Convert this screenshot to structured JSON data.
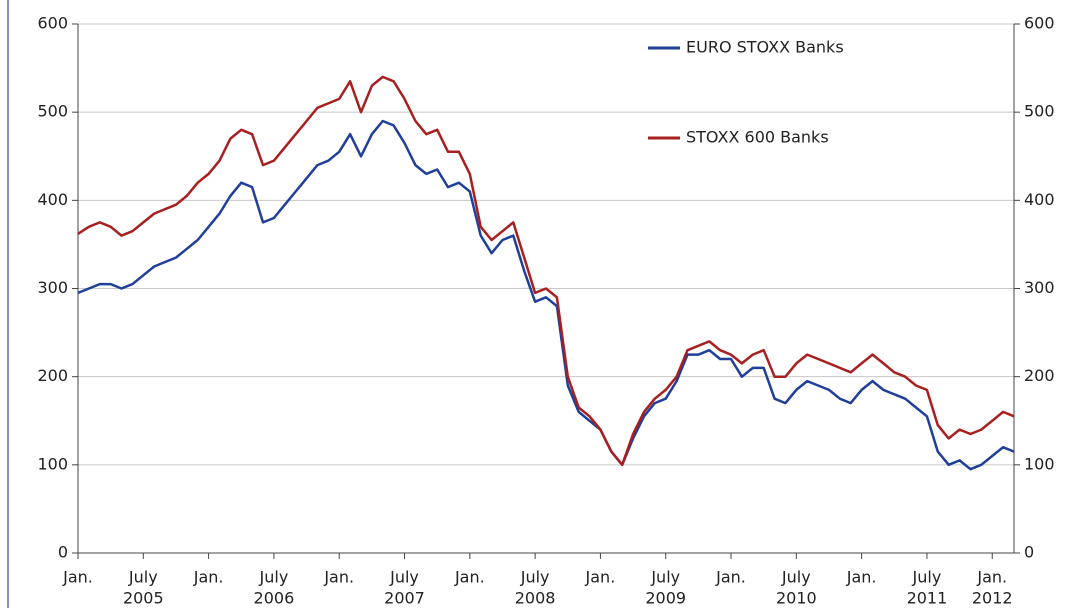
{
  "chart_data": {
    "type": "line",
    "x": [
      "2005-01",
      "2005-02",
      "2005-03",
      "2005-04",
      "2005-05",
      "2005-06",
      "2005-07",
      "2005-08",
      "2005-09",
      "2005-10",
      "2005-11",
      "2005-12",
      "2006-01",
      "2006-02",
      "2006-03",
      "2006-04",
      "2006-05",
      "2006-06",
      "2006-07",
      "2006-08",
      "2006-09",
      "2006-10",
      "2006-11",
      "2006-12",
      "2007-01",
      "2007-02",
      "2007-03",
      "2007-04",
      "2007-05",
      "2007-06",
      "2007-07",
      "2007-08",
      "2007-09",
      "2007-10",
      "2007-11",
      "2007-12",
      "2008-01",
      "2008-02",
      "2008-03",
      "2008-04",
      "2008-05",
      "2008-06",
      "2008-07",
      "2008-08",
      "2008-09",
      "2008-10",
      "2008-11",
      "2008-12",
      "2009-01",
      "2009-02",
      "2009-03",
      "2009-04",
      "2009-05",
      "2009-06",
      "2009-07",
      "2009-08",
      "2009-09",
      "2009-10",
      "2009-11",
      "2009-12",
      "2010-01",
      "2010-02",
      "2010-03",
      "2010-04",
      "2010-05",
      "2010-06",
      "2010-07",
      "2010-08",
      "2010-09",
      "2010-10",
      "2010-11",
      "2010-12",
      "2011-01",
      "2011-02",
      "2011-03",
      "2011-04",
      "2011-05",
      "2011-06",
      "2011-07",
      "2011-08",
      "2011-09",
      "2011-10",
      "2011-11",
      "2011-12",
      "2012-01",
      "2012-02",
      "2012-03"
    ],
    "series": [
      {
        "name": "EURO STOXX Banks",
        "color": "#1f3f99",
        "values": [
          295,
          300,
          305,
          305,
          300,
          305,
          315,
          325,
          330,
          335,
          345,
          355,
          370,
          385,
          405,
          420,
          415,
          375,
          380,
          395,
          410,
          425,
          440,
          445,
          455,
          475,
          450,
          475,
          490,
          485,
          465,
          440,
          430,
          435,
          415,
          420,
          410,
          360,
          340,
          355,
          360,
          320,
          285,
          290,
          280,
          190,
          160,
          150,
          140,
          115,
          100,
          130,
          155,
          170,
          175,
          195,
          225,
          225,
          230,
          220,
          220,
          200,
          210,
          210,
          175,
          170,
          185,
          195,
          190,
          185,
          175,
          170,
          185,
          195,
          185,
          180,
          175,
          165,
          155,
          115,
          100,
          105,
          95,
          100,
          110,
          120,
          115
        ]
      },
      {
        "name": "STOXX 600 Banks",
        "color": "#a81f1f",
        "values": [
          362,
          370,
          375,
          370,
          360,
          365,
          375,
          385,
          390,
          395,
          405,
          420,
          430,
          445,
          470,
          480,
          475,
          440,
          445,
          460,
          475,
          490,
          505,
          510,
          515,
          535,
          500,
          530,
          540,
          535,
          515,
          490,
          475,
          480,
          455,
          455,
          430,
          370,
          355,
          365,
          375,
          335,
          295,
          300,
          290,
          200,
          165,
          155,
          140,
          115,
          100,
          135,
          160,
          175,
          185,
          200,
          230,
          235,
          240,
          230,
          225,
          215,
          225,
          230,
          200,
          200,
          215,
          225,
          220,
          215,
          210,
          205,
          215,
          225,
          215,
          205,
          200,
          190,
          185,
          145,
          130,
          140,
          135,
          140,
          150,
          160,
          155
        ]
      }
    ],
    "xlim": [
      "2005-01",
      "2012-03"
    ],
    "xticks": [
      {
        "value": "2005-01",
        "label": "Jan."
      },
      {
        "value": "2005-07",
        "label": "July"
      },
      {
        "value": "2006-01",
        "label": "Jan."
      },
      {
        "value": "2006-07",
        "label": "July"
      },
      {
        "value": "2007-01",
        "label": "Jan."
      },
      {
        "value": "2007-07",
        "label": "July"
      },
      {
        "value": "2008-01",
        "label": "Jan."
      },
      {
        "value": "2008-07",
        "label": "July"
      },
      {
        "value": "2009-01",
        "label": "Jan."
      },
      {
        "value": "2009-07",
        "label": "July"
      },
      {
        "value": "2010-01",
        "label": "Jan."
      },
      {
        "value": "2010-07",
        "label": "July"
      },
      {
        "value": "2011-01",
        "label": "Jan."
      },
      {
        "value": "2011-07",
        "label": "July"
      },
      {
        "value": "2012-01",
        "label": "Jan."
      }
    ],
    "x_year_labels": [
      {
        "value": "2005-07",
        "label": "2005"
      },
      {
        "value": "2006-07",
        "label": "2006"
      },
      {
        "value": "2007-07",
        "label": "2007"
      },
      {
        "value": "2008-07",
        "label": "2008"
      },
      {
        "value": "2009-07",
        "label": "2009"
      },
      {
        "value": "2010-07",
        "label": "2010"
      },
      {
        "value": "2011-07",
        "label": "2011"
      },
      {
        "value": "2012-01",
        "label": "2012"
      }
    ],
    "ylim": [
      0,
      600
    ],
    "yticks": [
      0,
      100,
      200,
      300,
      400,
      500,
      600
    ],
    "y2lim": [
      0,
      600
    ],
    "y2ticks": [
      0,
      100,
      200,
      300,
      400,
      500,
      600
    ],
    "grid": true,
    "legend": "upper right"
  }
}
